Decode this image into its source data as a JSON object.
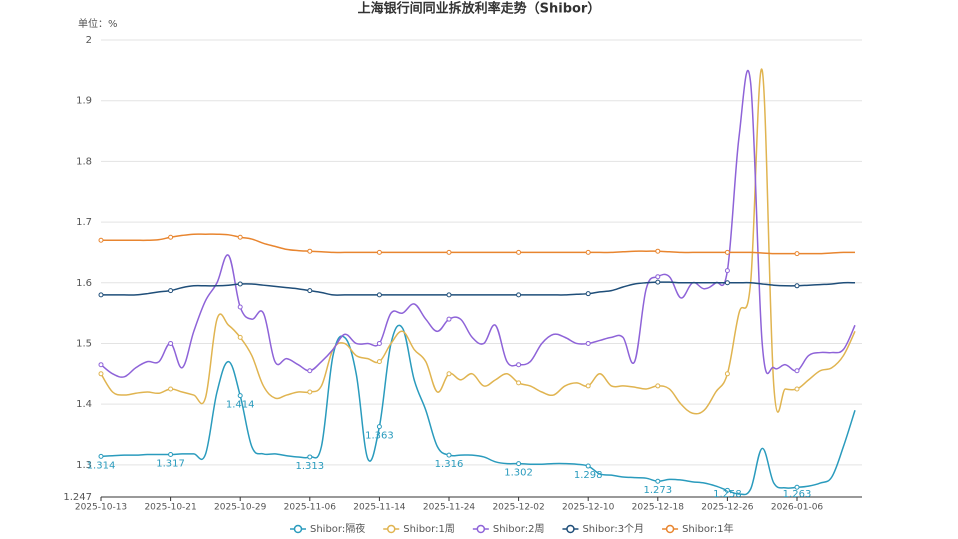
{
  "chart_data": {
    "type": "line",
    "title": "上海银行间同业拆放利率走势（Shibor）",
    "unit_label": "单位：%",
    "categories": [
      "2025-10-13",
      null,
      null,
      null,
      null,
      null,
      "2025-10-21",
      null,
      null,
      null,
      null,
      null,
      "2025-10-29",
      null,
      null,
      null,
      null,
      null,
      "2025-11-06",
      null,
      null,
      null,
      null,
      null,
      "2025-11-14",
      null,
      null,
      null,
      null,
      null,
      "2025-11-24",
      null,
      null,
      null,
      null,
      null,
      "2025-12-02",
      null,
      null,
      null,
      null,
      null,
      "2025-12-10",
      null,
      null,
      null,
      null,
      null,
      "2025-12-18",
      null,
      null,
      null,
      null,
      null,
      "2025-12-26",
      null,
      null,
      null,
      null,
      null,
      "2026-01-06",
      null,
      null,
      null,
      null,
      null
    ],
    "ylim": [
      1.247,
      2
    ],
    "yticks": [
      1.247,
      1.3,
      1.4,
      1.5,
      1.6,
      1.7,
      1.8,
      1.9,
      2
    ],
    "grid": true,
    "series": [
      {
        "name": "Shibor:隔夜",
        "color": "#2a9bbd",
        "data_labels": true,
        "values": [
          1.314,
          1.315,
          1.316,
          1.316,
          1.317,
          1.317,
          1.317,
          1.318,
          1.318,
          1.317,
          1.42,
          1.47,
          1.414,
          1.33,
          1.318,
          1.318,
          1.315,
          1.313,
          1.313,
          1.33,
          1.48,
          1.51,
          1.45,
          1.31,
          1.363,
          1.5,
          1.525,
          1.44,
          1.39,
          1.33,
          1.316,
          1.316,
          1.316,
          1.313,
          1.305,
          1.302,
          1.302,
          1.301,
          1.301,
          1.302,
          1.302,
          1.301,
          1.298,
          1.285,
          1.283,
          1.28,
          1.279,
          1.278,
          1.273,
          1.276,
          1.275,
          1.272,
          1.27,
          1.265,
          1.258,
          1.252,
          1.26,
          1.327,
          1.27,
          1.262,
          1.263,
          1.265,
          1.27,
          1.28,
          1.33,
          1.39
        ]
      },
      {
        "name": "Shibor:1周",
        "color": "#e0b450",
        "values": [
          1.45,
          1.42,
          1.415,
          1.418,
          1.42,
          1.418,
          1.425,
          1.42,
          1.415,
          1.41,
          1.54,
          1.53,
          1.51,
          1.48,
          1.43,
          1.41,
          1.415,
          1.42,
          1.42,
          1.43,
          1.49,
          1.5,
          1.48,
          1.475,
          1.47,
          1.5,
          1.52,
          1.49,
          1.47,
          1.42,
          1.45,
          1.44,
          1.45,
          1.43,
          1.44,
          1.45,
          1.435,
          1.43,
          1.42,
          1.415,
          1.43,
          1.435,
          1.43,
          1.45,
          1.43,
          1.43,
          1.428,
          1.425,
          1.43,
          1.425,
          1.4,
          1.385,
          1.39,
          1.42,
          1.45,
          1.55,
          1.6,
          1.95,
          1.43,
          1.425,
          1.425,
          1.44,
          1.455,
          1.46,
          1.48,
          1.52
        ]
      },
      {
        "name": "Shibor:2周",
        "color": "#8e63d8",
        "values": [
          1.465,
          1.45,
          1.445,
          1.46,
          1.47,
          1.47,
          1.5,
          1.46,
          1.52,
          1.57,
          1.6,
          1.645,
          1.56,
          1.54,
          1.55,
          1.47,
          1.475,
          1.465,
          1.455,
          1.47,
          1.49,
          1.515,
          1.5,
          1.5,
          1.5,
          1.55,
          1.55,
          1.565,
          1.54,
          1.52,
          1.54,
          1.54,
          1.51,
          1.5,
          1.53,
          1.47,
          1.465,
          1.47,
          1.5,
          1.515,
          1.51,
          1.5,
          1.5,
          1.505,
          1.51,
          1.51,
          1.47,
          1.59,
          1.61,
          1.61,
          1.575,
          1.6,
          1.59,
          1.6,
          1.62,
          1.84,
          1.93,
          1.5,
          1.46,
          1.465,
          1.455,
          1.48,
          1.485,
          1.485,
          1.49,
          1.53
        ]
      },
      {
        "name": "Shibor:3个月",
        "color": "#1f4e79",
        "values": [
          1.58,
          1.58,
          1.58,
          1.58,
          1.582,
          1.585,
          1.587,
          1.592,
          1.595,
          1.595,
          1.595,
          1.596,
          1.598,
          1.598,
          1.596,
          1.594,
          1.592,
          1.59,
          1.587,
          1.584,
          1.58,
          1.58,
          1.58,
          1.58,
          1.58,
          1.58,
          1.58,
          1.58,
          1.58,
          1.58,
          1.58,
          1.58,
          1.58,
          1.58,
          1.58,
          1.58,
          1.58,
          1.58,
          1.58,
          1.58,
          1.58,
          1.581,
          1.582,
          1.585,
          1.587,
          1.593,
          1.598,
          1.6,
          1.601,
          1.601,
          1.6,
          1.6,
          1.6,
          1.6,
          1.6,
          1.6,
          1.6,
          1.598,
          1.596,
          1.595,
          1.595,
          1.596,
          1.597,
          1.598,
          1.6,
          1.6
        ]
      },
      {
        "name": "Shibor:1年",
        "color": "#e8852f",
        "values": [
          1.67,
          1.67,
          1.67,
          1.67,
          1.67,
          1.671,
          1.675,
          1.678,
          1.68,
          1.68,
          1.68,
          1.679,
          1.675,
          1.672,
          1.665,
          1.66,
          1.655,
          1.653,
          1.652,
          1.651,
          1.65,
          1.65,
          1.65,
          1.65,
          1.65,
          1.65,
          1.65,
          1.65,
          1.65,
          1.65,
          1.65,
          1.65,
          1.65,
          1.65,
          1.65,
          1.65,
          1.65,
          1.65,
          1.65,
          1.65,
          1.65,
          1.65,
          1.65,
          1.65,
          1.65,
          1.651,
          1.652,
          1.652,
          1.652,
          1.651,
          1.65,
          1.65,
          1.65,
          1.65,
          1.65,
          1.65,
          1.65,
          1.649,
          1.648,
          1.648,
          1.648,
          1.648,
          1.648,
          1.649,
          1.65,
          1.65
        ]
      }
    ]
  }
}
